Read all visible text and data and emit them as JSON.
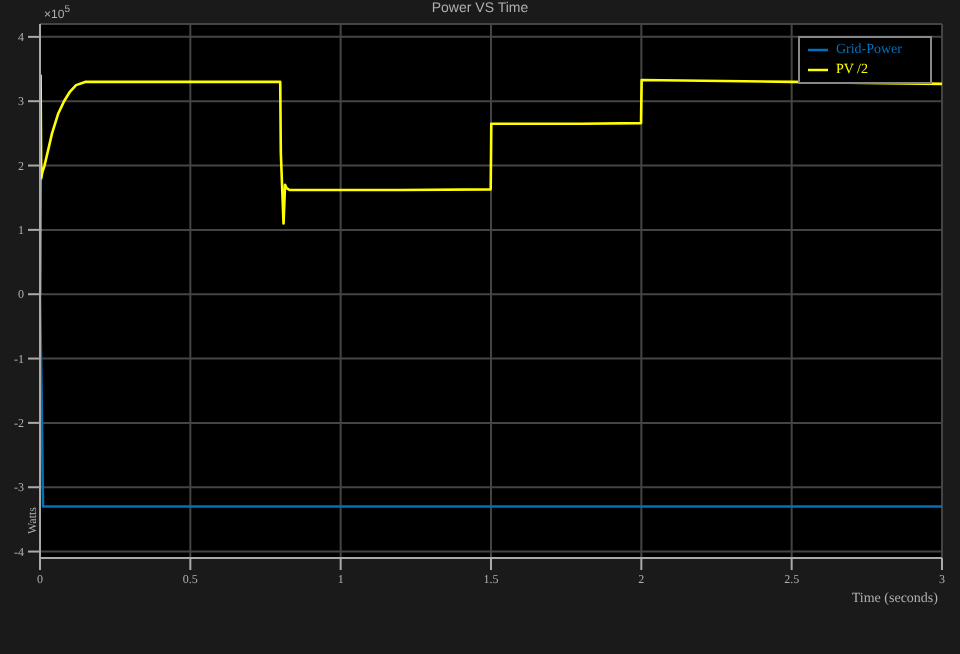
{
  "chart_data": {
    "type": "line",
    "title": "Power VS Time",
    "xlabel": "Time (seconds)",
    "ylabel": "Watts",
    "annotations": [
      "×10$^{5}$"
    ],
    "series": [
      {
        "name": "PV /2",
        "color": "#ffff00",
        "x": [
          0,
          0.002,
          0.004,
          0.008,
          0.015,
          0.025,
          0.04,
          0.06,
          0.08,
          0.1,
          0.12,
          0.15,
          0.2,
          0.3,
          0.5,
          0.7,
          0.799,
          0.801,
          0.805,
          0.81,
          0.815,
          0.82,
          0.83,
          1.0,
          1.2,
          1.499,
          1.501,
          1.8,
          1.999,
          2.001,
          2.5,
          3.0
        ],
        "values": [
          0,
          3.4,
          1.8,
          1.9,
          2.0,
          2.2,
          2.5,
          2.8,
          3.0,
          3.15,
          3.25,
          3.3,
          3.3,
          3.3,
          3.3,
          3.3,
          3.3,
          2.2,
          1.7,
          1.1,
          1.7,
          1.65,
          1.62,
          1.62,
          1.62,
          1.63,
          2.65,
          2.65,
          2.66,
          3.33,
          3.3,
          3.27
        ]
      },
      {
        "name": "Grid-Power",
        "color": "#0072bd",
        "x": [
          0,
          0.005,
          0.01,
          3.0
        ],
        "values": [
          0,
          -1.5,
          -3.3,
          -3.3
        ]
      }
    ],
    "xlim": [
      0,
      3
    ],
    "xticks": [
      0,
      0.5,
      1,
      1.5,
      2,
      2.5,
      3
    ],
    "ylim": [
      -4.1,
      4.2
    ],
    "yticks": [
      -4,
      -3,
      -2,
      -1,
      0,
      1,
      2,
      3,
      4
    ],
    "grid": true,
    "legend": "top right",
    "marker": "none",
    "line_style": "solid"
  }
}
